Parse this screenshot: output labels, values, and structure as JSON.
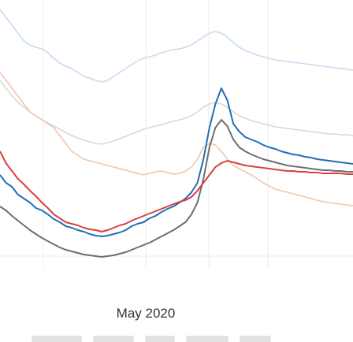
{
  "chart_data": {
    "type": "line",
    "title": "",
    "xlabel": "",
    "ylabel": "",
    "x_tick_labels": [
      "May 2020"
    ],
    "x": [
      0,
      1,
      2,
      3,
      4,
      5,
      6,
      7,
      8,
      9,
      10,
      11,
      12,
      13,
      14,
      15,
      16,
      17,
      18,
      19,
      20,
      21,
      22,
      23,
      24,
      25,
      26,
      27,
      28,
      29,
      30,
      31,
      32,
      33,
      34,
      35,
      36,
      37,
      38,
      39,
      40,
      41,
      42,
      43,
      44,
      45,
      46,
      47,
      48,
      49,
      50,
      51,
      52,
      53,
      54,
      55,
      56,
      57,
      58,
      59
    ],
    "grid": true,
    "ylim": [
      0,
      432
    ],
    "series": [
      {
        "color": "#1f6fb8",
        "values": [
          210,
          200,
          195,
          185,
          180,
          175,
          168,
          165,
          160,
          154,
          150,
          145,
          143,
          140,
          138,
          135,
          133,
          132,
          133,
          135,
          137,
          140,
          145,
          148,
          150,
          155,
          158,
          163,
          167,
          170,
          175,
          180,
          188,
          200,
          230,
          270,
          300,
          320,
          305,
          275,
          265,
          258,
          255,
          252,
          248,
          245,
          243,
          240,
          238,
          236,
          235,
          233,
          232,
          230,
          229,
          228,
          227,
          226,
          225,
          224
        ]
      },
      {
        "color": "#d94040",
        "values": [
          240,
          225,
          215,
          205,
          198,
          190,
          183,
          175,
          168,
          160,
          155,
          150,
          148,
          146,
          143,
          141,
          140,
          138,
          140,
          143,
          146,
          148,
          152,
          155,
          158,
          161,
          164,
          167,
          170,
          173,
          176,
          178,
          182,
          190,
          200,
          210,
          220,
          225,
          228,
          226,
          224,
          222,
          221,
          220,
          219,
          218,
          217,
          216,
          215,
          215,
          214,
          214,
          213,
          213,
          212,
          212,
          212,
          212,
          211,
          211
        ]
      },
      {
        "color": "#6e6e6e",
        "values": [
          170,
          165,
          158,
          152,
          146,
          140,
          135,
          130,
          126,
          122,
          118,
          115,
          113,
          111,
          109,
          108,
          107,
          106,
          107,
          108,
          110,
          112,
          115,
          118,
          121,
          124,
          128,
          132,
          136,
          140,
          145,
          150,
          160,
          175,
          205,
          245,
          270,
          280,
          272,
          255,
          245,
          240,
          236,
          233,
          230,
          228,
          226,
          224,
          222,
          221,
          220,
          219,
          218,
          217,
          216,
          216,
          215,
          215,
          214,
          214
        ]
      },
      {
        "color": "#f2c5aa",
        "values": [
          340,
          330,
          320,
          310,
          300,
          290,
          285,
          280,
          275,
          270,
          260,
          250,
          240,
          235,
          230,
          228,
          226,
          224,
          222,
          220,
          218,
          216,
          214,
          212,
          210,
          212,
          214,
          215,
          213,
          211,
          212,
          215,
          220,
          230,
          245,
          250,
          248,
          240,
          230,
          222,
          218,
          214,
          210,
          205,
          200,
          196,
          192,
          190,
          188,
          186,
          184,
          182,
          180,
          178,
          176,
          175,
          174,
          173,
          172,
          171
        ]
      },
      {
        "color": "#c7dbef",
        "values": [
          420,
          410,
          400,
          390,
          380,
          375,
          372,
          370,
          365,
          358,
          352,
          348,
          345,
          340,
          335,
          333,
          330,
          328,
          330,
          335,
          340,
          345,
          350,
          355,
          358,
          360,
          362,
          365,
          367,
          369,
          370,
          372,
          375,
          380,
          385,
          390,
          392,
          390,
          385,
          378,
          372,
          368,
          365,
          362,
          360,
          358,
          356,
          355,
          354,
          353,
          352,
          351,
          350,
          349,
          348,
          347,
          346,
          345,
          344,
          343
        ]
      },
      {
        "color": "#d8d8d8",
        "values": [
          330,
          320,
          310,
          302,
          296,
          290,
          285,
          280,
          276,
          272,
          268,
          264,
          260,
          257,
          254,
          252,
          250,
          249,
          251,
          253,
          256,
          259,
          262,
          265,
          268,
          270,
          272,
          274,
          276,
          278,
          280,
          282,
          285,
          290,
          296,
          300,
          302,
          300,
          296,
          290,
          285,
          282,
          279,
          277,
          275,
          273,
          271,
          270,
          269,
          268,
          267,
          266,
          265,
          264,
          263,
          262,
          262,
          261,
          261,
          260
        ]
      }
    ]
  }
}
